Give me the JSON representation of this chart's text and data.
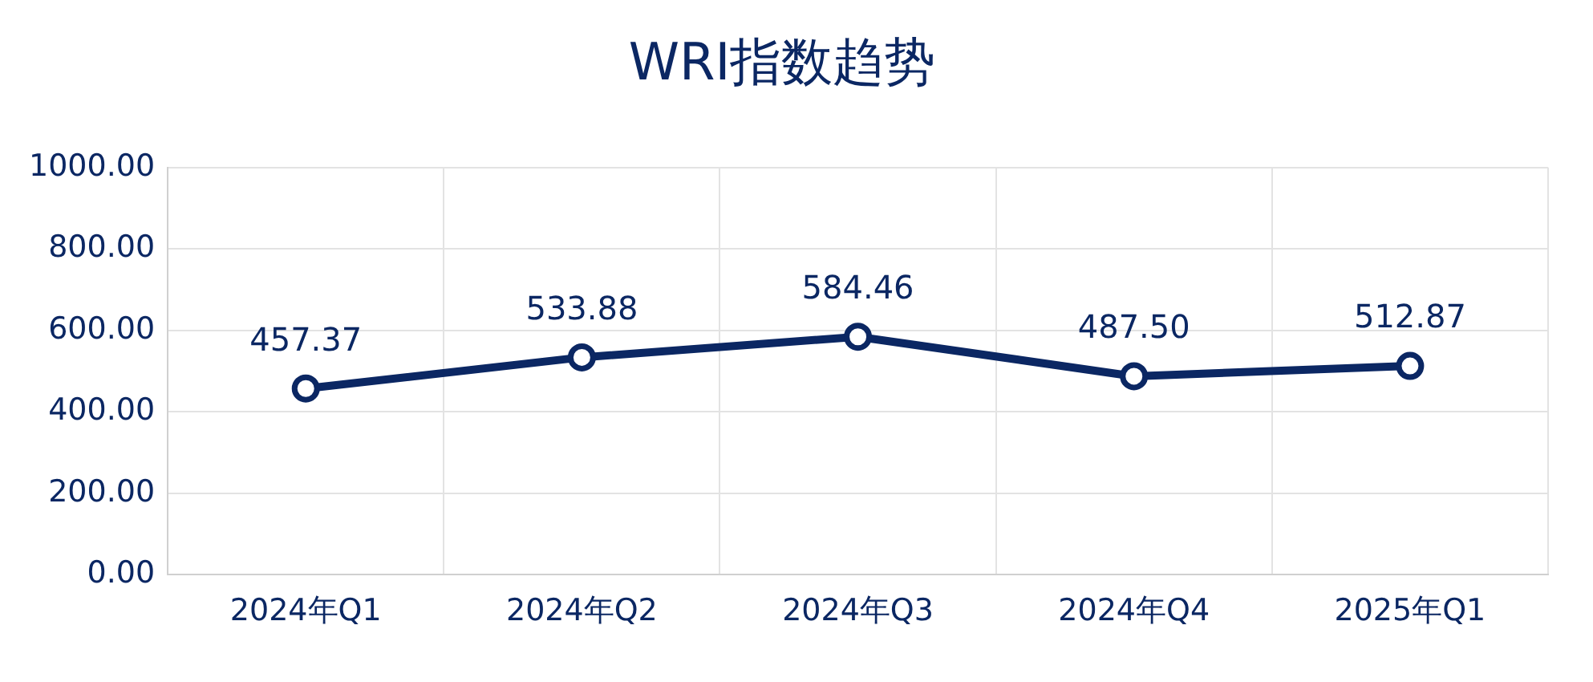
{
  "chart_data": {
    "type": "line",
    "title": "WRI指数趋势",
    "categories": [
      "2024年Q1",
      "2024年Q2",
      "2024年Q3",
      "2024年Q4",
      "2025年Q1"
    ],
    "series": [
      {
        "color": "#0b2763",
        "values": [
          457.37,
          533.88,
          584.46,
          487.5,
          512.87
        ],
        "value_labels": [
          "457.37",
          "533.88",
          "584.46",
          "487.50",
          "512.87"
        ]
      }
    ],
    "ylim": [
      0,
      1000
    ],
    "yticks": [
      {
        "value": 0,
        "label": "0.00"
      },
      {
        "value": 200,
        "label": "200.00"
      },
      {
        "value": 400,
        "label": "400.00"
      },
      {
        "value": 600,
        "label": "600.00"
      },
      {
        "value": 800,
        "label": "800.00"
      },
      {
        "value": 1000,
        "label": "1000.00"
      }
    ],
    "grid": true,
    "legend": false,
    "marker": "circle",
    "line_style": "solid"
  }
}
